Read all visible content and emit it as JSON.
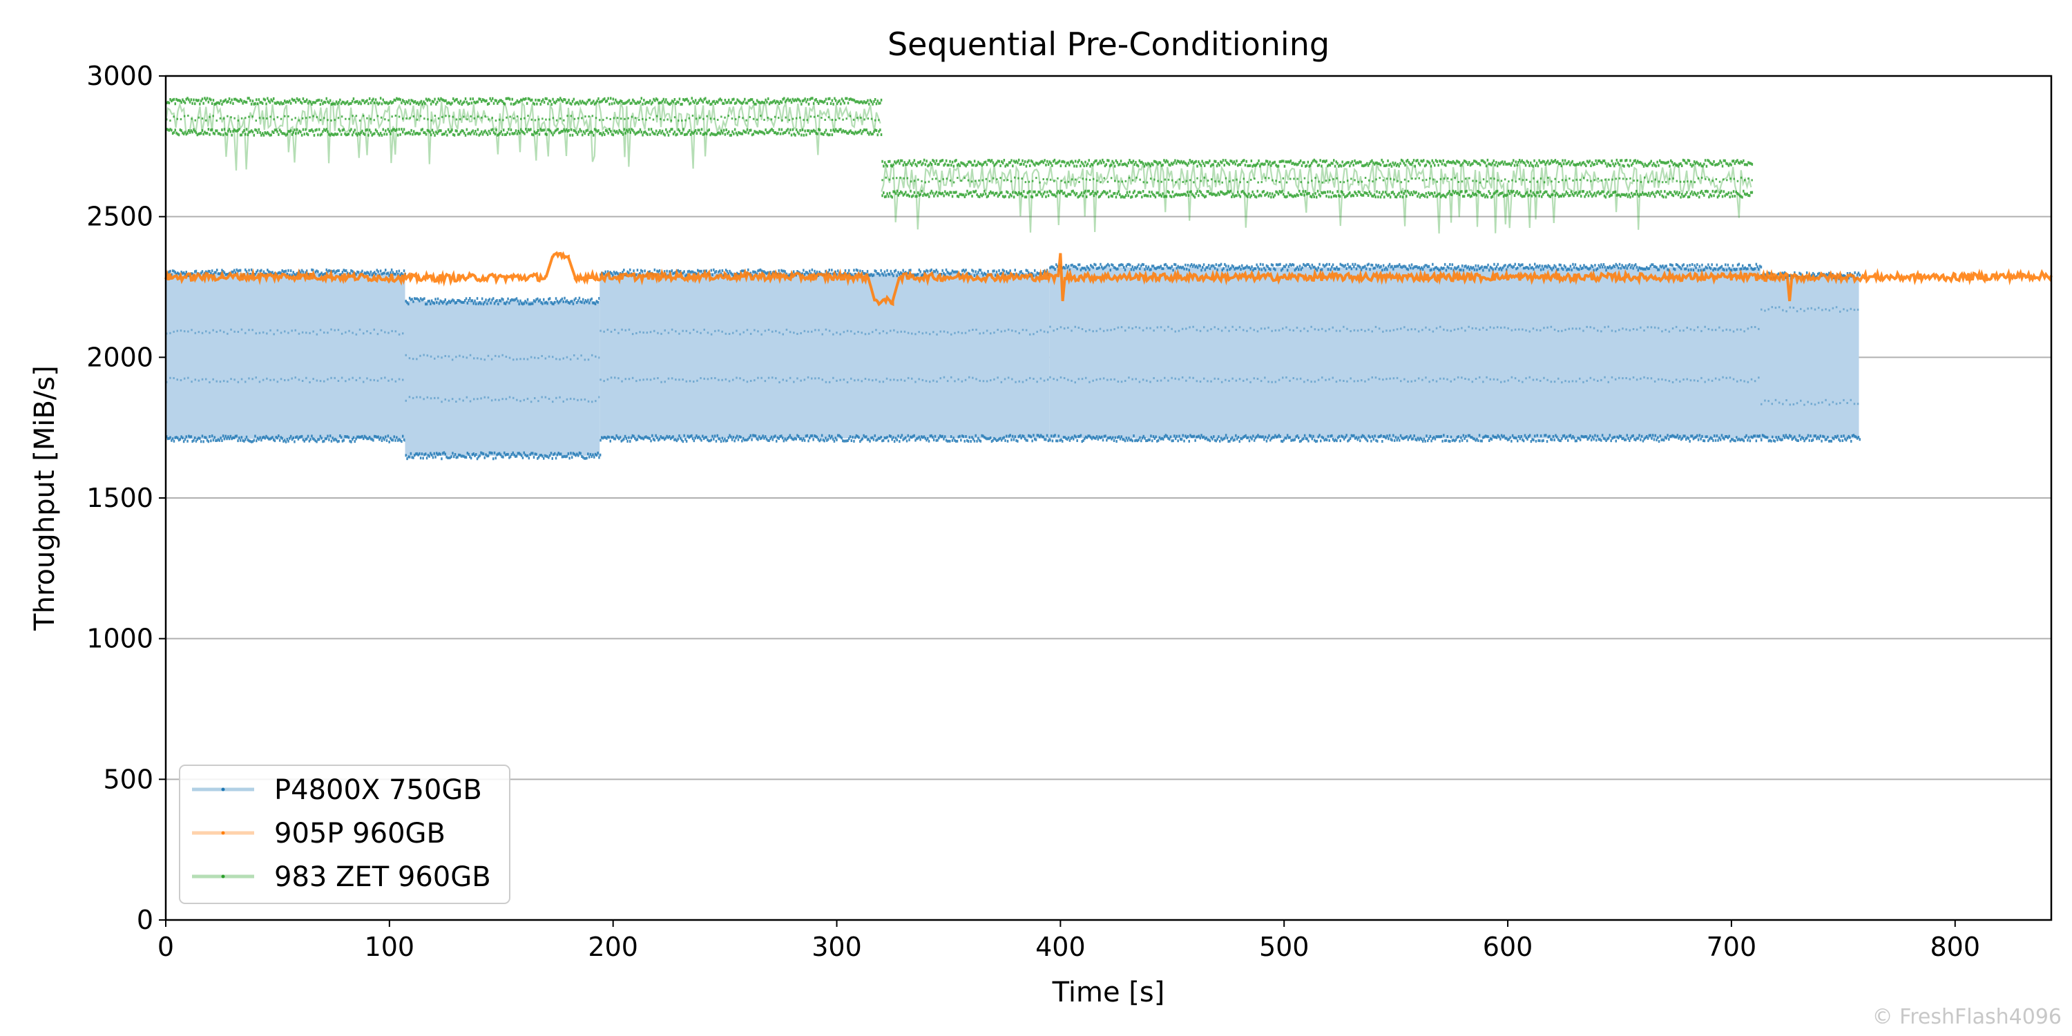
{
  "chart_data": {
    "type": "line",
    "title": "Sequential Pre-Conditioning",
    "xlabel": "Time [s]",
    "ylabel": "Throughput [MiB/s]",
    "xlim": [
      0,
      843
    ],
    "ylim": [
      0,
      3000
    ],
    "xticks": [
      0,
      100,
      200,
      300,
      400,
      500,
      600,
      700,
      800
    ],
    "yticks": [
      0,
      500,
      1000,
      1500,
      2000,
      2500,
      3000
    ],
    "grid": "horizontal",
    "legend_position": "lower-left",
    "series": [
      {
        "name": "P4800X 750GB",
        "color": "#1f77b4",
        "fill_color": "#b8d3ea",
        "style": "band",
        "segments": [
          {
            "x0": 0,
            "x1": 107,
            "low": 1710,
            "high": 2300,
            "inner": [
              2090,
              1920
            ]
          },
          {
            "x0": 107,
            "x1": 194,
            "low": 1650,
            "high": 2200,
            "inner": [
              2000,
              1850
            ]
          },
          {
            "x0": 194,
            "x1": 395,
            "low": 1712,
            "high": 2300,
            "inner": [
              2090,
              1920
            ]
          },
          {
            "x0": 395,
            "x1": 713,
            "low": 1712,
            "high": 2320,
            "inner": [
              2100,
              1920
            ]
          },
          {
            "x0": 713,
            "x1": 757,
            "low": 1712,
            "high": 2290,
            "inner": [
              2170,
              1840
            ]
          }
        ]
      },
      {
        "name": "905P 960GB",
        "color": "#ff7f0e",
        "style": "line",
        "points": [
          [
            0,
            2285
          ],
          [
            60,
            2288
          ],
          [
            110,
            2282
          ],
          [
            170,
            2285
          ],
          [
            173,
            2360
          ],
          [
            180,
            2355
          ],
          [
            183,
            2285
          ],
          [
            250,
            2288
          ],
          [
            314,
            2285
          ],
          [
            317,
            2200
          ],
          [
            325,
            2200
          ],
          [
            328,
            2285
          ],
          [
            399,
            2285
          ],
          [
            400,
            2370
          ],
          [
            401,
            2200
          ],
          [
            402,
            2285
          ],
          [
            500,
            2285
          ],
          [
            600,
            2285
          ],
          [
            700,
            2285
          ],
          [
            725,
            2285
          ],
          [
            726,
            2200
          ],
          [
            727,
            2285
          ],
          [
            800,
            2285
          ],
          [
            843,
            2290
          ]
        ]
      },
      {
        "name": "983 ZET 960GB",
        "color": "#2ca02c",
        "style": "band",
        "segments": [
          {
            "x0": 0,
            "x1": 320,
            "low": 2800,
            "high": 2910,
            "inner": [
              2850
            ]
          },
          {
            "x0": 320,
            "x1": 709,
            "low": 2580,
            "high": 2690,
            "inner": [
              2630
            ]
          }
        ]
      }
    ]
  },
  "watermark": "© FreshFlash4096"
}
